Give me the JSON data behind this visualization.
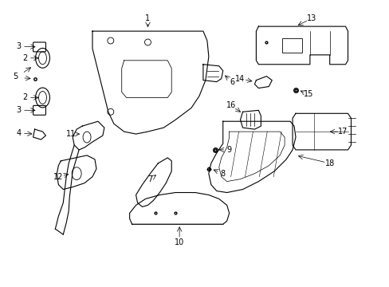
{
  "background_color": "#ffffff",
  "line_color": "#000000",
  "figure_width": 4.89,
  "figure_height": 3.6,
  "dpi": 100,
  "font_sz": 7
}
